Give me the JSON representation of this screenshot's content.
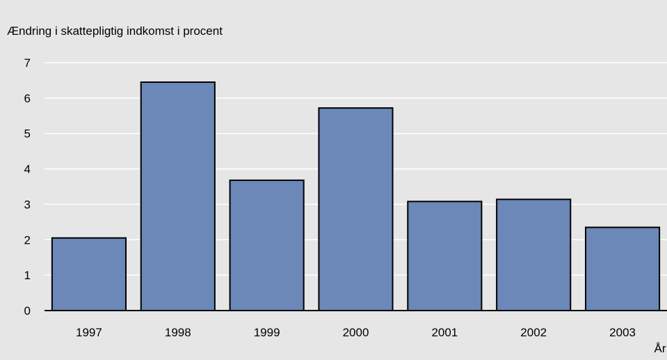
{
  "chart_data": {
    "type": "bar",
    "title": "",
    "ylabel": "Ændring i skattepligtig indkomst i procent",
    "xlabel": "År",
    "categories": [
      "1997",
      "1998",
      "1999",
      "2000",
      "2001",
      "2002",
      "2003"
    ],
    "values": [
      2.05,
      6.45,
      3.68,
      5.72,
      3.08,
      3.14,
      2.35
    ],
    "ylim": [
      0,
      7
    ],
    "yticks": [
      "0",
      "1",
      "2",
      "3",
      "4",
      "5",
      "6",
      "7"
    ],
    "grid": true,
    "legend": "none",
    "colors": {
      "background": "#e6e6e6",
      "bar_fill": "#6b88b8",
      "bar_stroke": "#000000",
      "gridline": "#ffffff",
      "axis": "#000000"
    }
  }
}
